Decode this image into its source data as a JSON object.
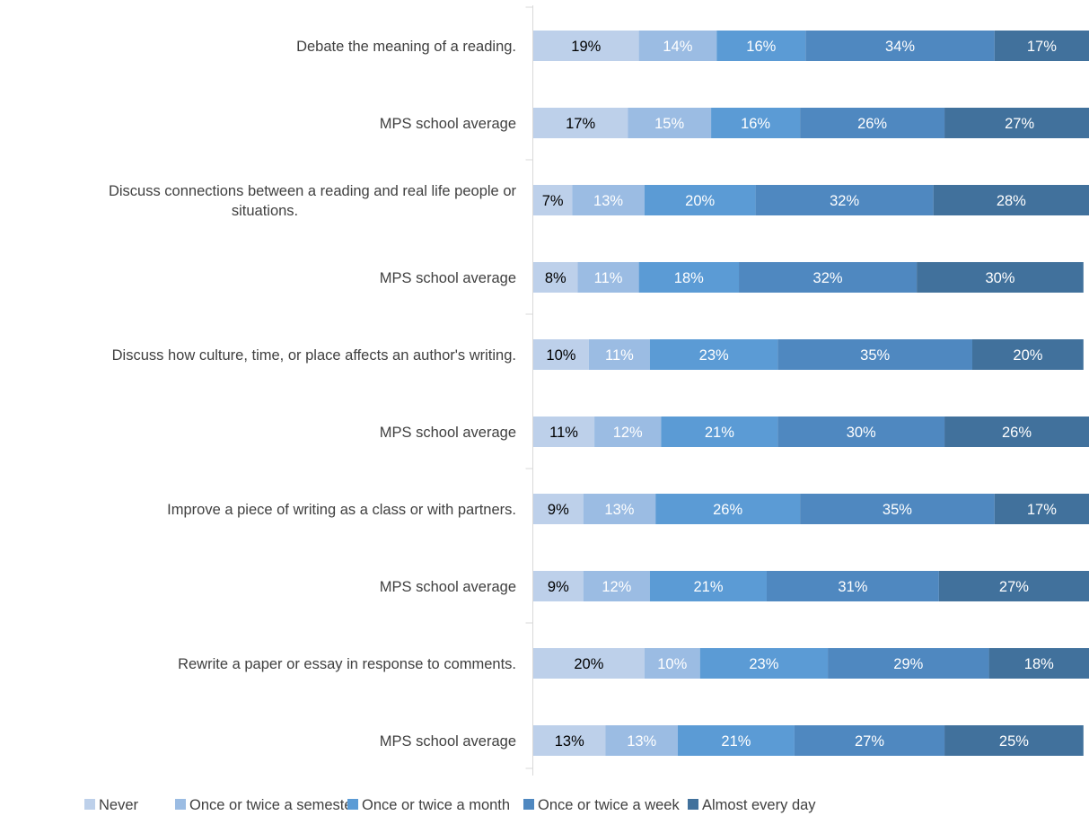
{
  "chart_data": {
    "type": "bar",
    "orientation": "horizontal",
    "stacked": true,
    "percent": true,
    "categories": [
      "Debate the meaning of a reading.",
      "MPS school average",
      "Discuss connections between a reading and real life people or situations.",
      "MPS school average",
      "Discuss how culture, time, or place affects an author's writing.",
      "MPS school average",
      "Improve a piece of writing as a class or with partners.",
      "MPS school average",
      "Rewrite a paper or essay in response to comments.",
      "MPS school average"
    ],
    "category_lines": [
      [
        "Debate the meaning of a reading."
      ],
      [
        "MPS school average"
      ],
      [
        "Discuss connections between a reading and real life people or",
        "situations."
      ],
      [
        "MPS school average"
      ],
      [
        "Discuss how culture, time, or place affects an author's writing."
      ],
      [
        "MPS school average"
      ],
      [
        "Improve a piece of writing as a class or with partners."
      ],
      [
        "MPS school average"
      ],
      [
        "Rewrite a paper or essay in response to comments."
      ],
      [
        "MPS school average"
      ]
    ],
    "series": [
      {
        "name": "Never",
        "color": "#BDD0EA",
        "label_color": "#000000",
        "values": [
          19,
          17,
          7,
          8,
          10,
          11,
          9,
          9,
          20,
          13
        ]
      },
      {
        "name": "Once or twice a semester",
        "color": "#9BBCE3",
        "label_color": "#FFFFFF",
        "values": [
          14,
          15,
          13,
          11,
          11,
          12,
          13,
          12,
          10,
          13
        ]
      },
      {
        "name": "Once or twice a month",
        "color": "#5B9BD5",
        "label_color": "#FFFFFF",
        "values": [
          16,
          16,
          20,
          18,
          23,
          21,
          26,
          21,
          23,
          21
        ]
      },
      {
        "name": "Once or twice a week",
        "color": "#4F88C0",
        "label_color": "#FFFFFF",
        "values": [
          34,
          26,
          32,
          32,
          35,
          30,
          35,
          31,
          29,
          27
        ]
      },
      {
        "name": "Almost every day",
        "color": "#41719C",
        "label_color": "#FFFFFF",
        "values": [
          17,
          27,
          28,
          30,
          20,
          26,
          17,
          27,
          18,
          25
        ]
      }
    ],
    "value_suffix": "%",
    "title": "",
    "xlabel": "",
    "ylabel": "",
    "grid": false,
    "legend": "bottom"
  }
}
